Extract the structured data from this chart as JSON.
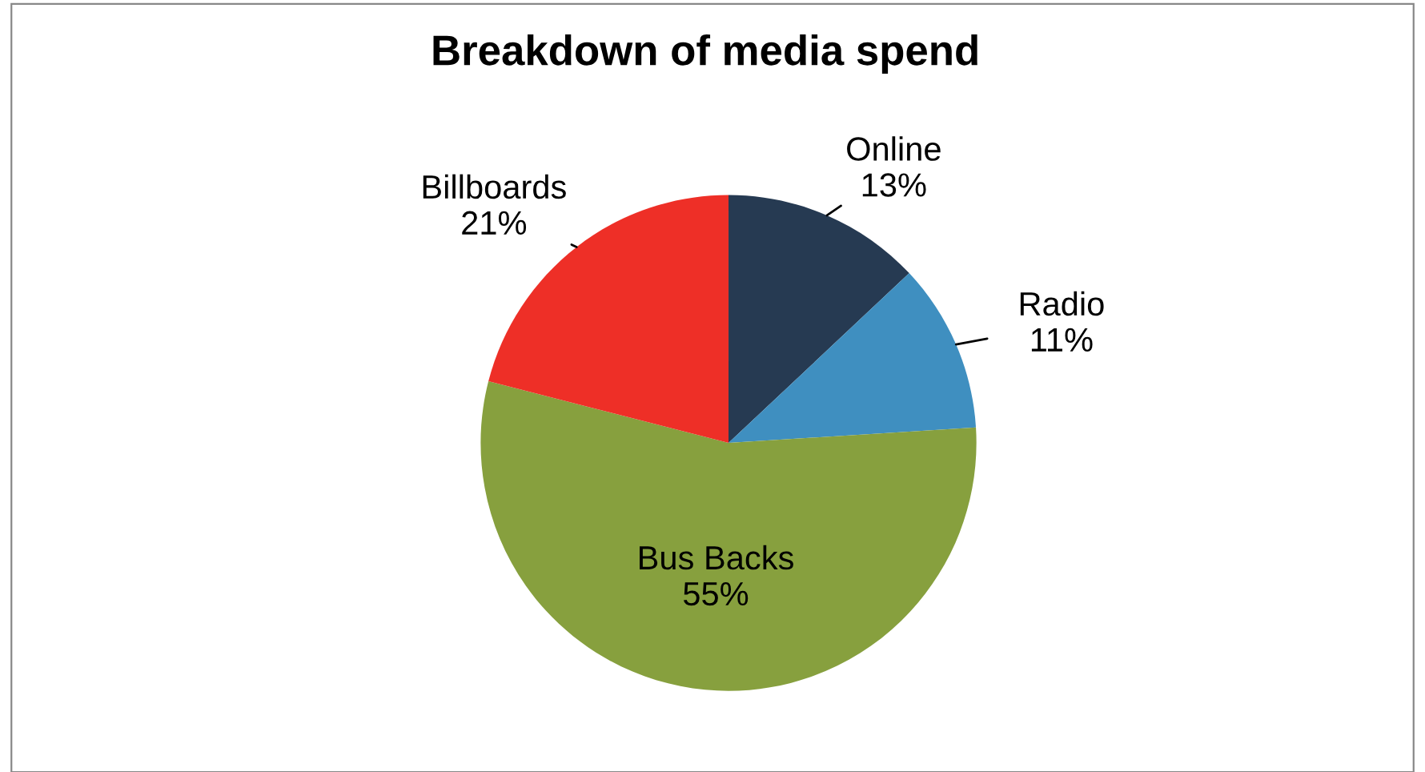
{
  "chart_data": {
    "type": "pie",
    "title": "Breakdown of media spend",
    "categories": [
      "Online",
      "Radio",
      "Bus Backs",
      "Billboards"
    ],
    "values": [
      13,
      11,
      55,
      21
    ],
    "colors": [
      "#263a52",
      "#3f8fc0",
      "#87a03e",
      "#ee2f27"
    ],
    "value_labels": [
      "13%",
      "11%",
      "55%",
      "21%"
    ],
    "legend": false
  }
}
